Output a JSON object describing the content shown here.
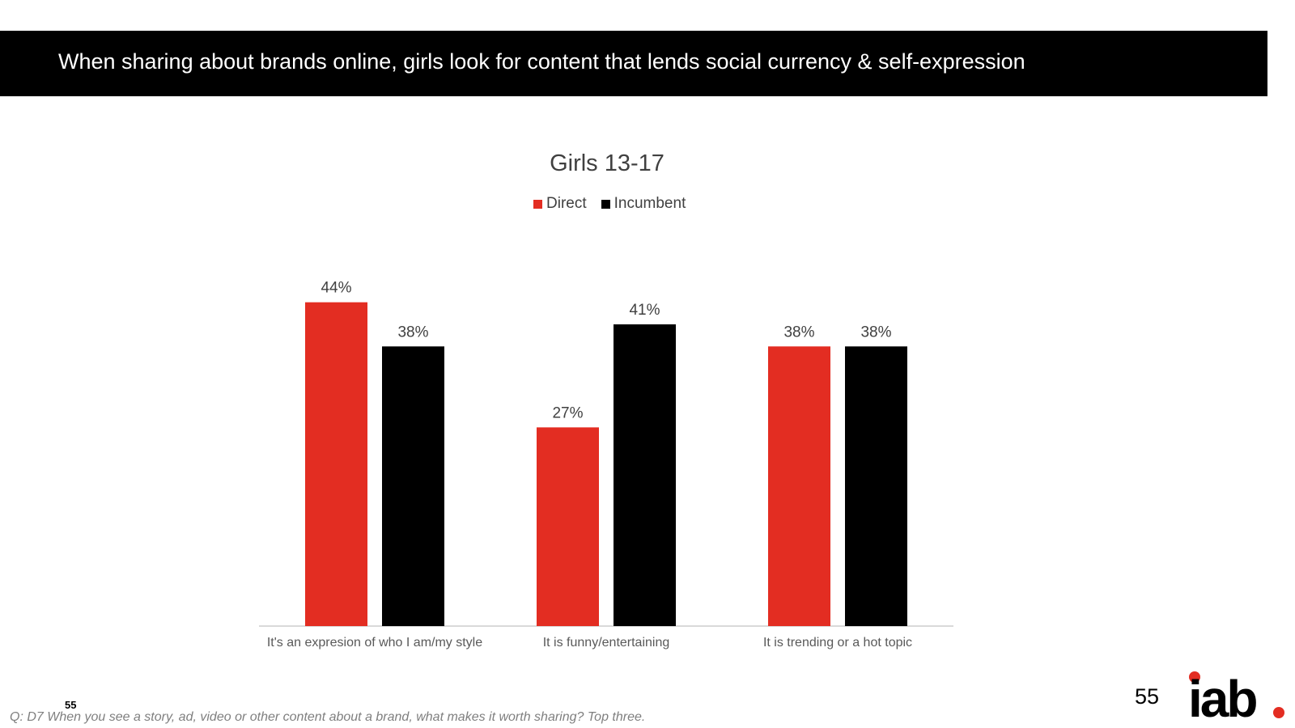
{
  "header": {
    "title": "When sharing about brands online, girls look for content that lends social currency & self-expression"
  },
  "chart_data": {
    "type": "bar",
    "title": "Girls 13-17",
    "categories": [
      "It's an expresion of who I am/my style",
      "It is funny/entertaining",
      "It is trending or a hot topic"
    ],
    "series": [
      {
        "name": "Direct",
        "values": [
          44,
          27,
          38
        ],
        "labels": [
          "44%",
          "27%",
          "38%"
        ],
        "color": "#e32d22"
      },
      {
        "name": "Incumbent",
        "values": [
          38,
          41,
          38
        ],
        "labels": [
          "38%",
          "41%",
          "38%"
        ],
        "color": "#000000"
      }
    ],
    "value_format": "percent",
    "ylim": [
      0,
      51
    ],
    "xlabel": "",
    "ylabel": "",
    "grid": false,
    "y_axis_visible": false,
    "legend_position": "top"
  },
  "footer": {
    "slide_number_small": "55",
    "question": "Q: D7 When you see a story, ad, video or other content about a brand, what makes it worth sharing? Top three.",
    "page_number": "55"
  },
  "logo": {
    "text": "iab",
    "dot_color": "#e32d22",
    "icon": "iab-logo"
  }
}
